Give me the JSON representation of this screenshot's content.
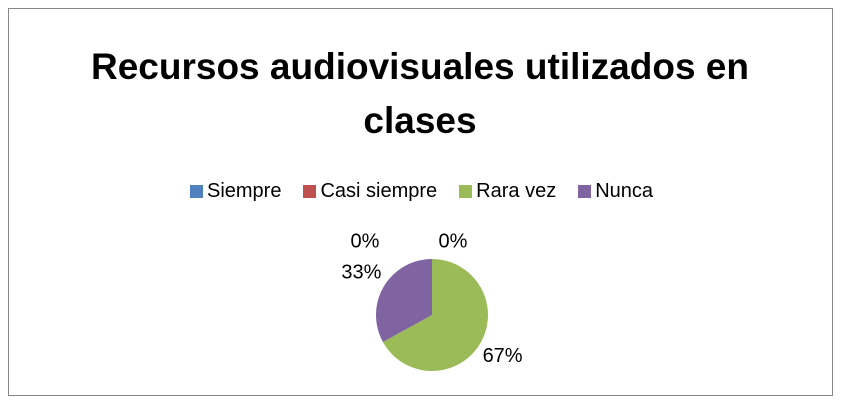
{
  "chart_data": {
    "type": "pie",
    "title": "Recursos audiovisuales utilizados en clases",
    "categories": [
      "Siempre",
      "Casi siempre",
      "Rara vez",
      "Nunca"
    ],
    "values": [
      0,
      0,
      67,
      33
    ],
    "value_labels": [
      "0%",
      "0%",
      "67%",
      "33%"
    ],
    "colors": [
      "#4f81bd",
      "#c0504d",
      "#9bbb59",
      "#8064a2"
    ],
    "legend": "top"
  }
}
